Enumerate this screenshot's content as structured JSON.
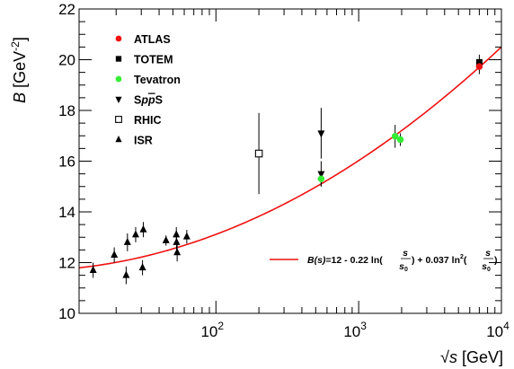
{
  "chart_data": {
    "type": "scatter",
    "xscale": "log",
    "xlim": [
      11,
      10000
    ],
    "ylim": [
      10,
      22
    ],
    "xlabel": "√s [GeV]",
    "ylabel": "B [GeV⁻²]",
    "x_ticks": [
      {
        "value": 100,
        "base": "10",
        "exp": "2"
      },
      {
        "value": 1000,
        "base": "10",
        "exp": "3"
      },
      {
        "value": 10000,
        "base": "10",
        "exp": "4"
      }
    ],
    "y_ticks": [
      10,
      12,
      14,
      16,
      18,
      20,
      22
    ],
    "grid": false,
    "legend_position": "top-left",
    "series": [
      {
        "name": "ATLAS",
        "marker": "circle-filled",
        "color": "#ee1111",
        "points": [
          {
            "x": 7000,
            "y": 19.73,
            "err": 0.3
          }
        ]
      },
      {
        "name": "TOTEM",
        "marker": "square-filled",
        "color": "#000000",
        "points": [
          {
            "x": 7000,
            "y": 19.9,
            "err": 0.3
          }
        ]
      },
      {
        "name": "Tevatron",
        "marker": "circle-filled",
        "color": "#33ee33",
        "points": [
          {
            "x": 546,
            "y": 15.3,
            "err": 0.3
          },
          {
            "x": 1800,
            "y": 16.98,
            "err": 0.45
          },
          {
            "x": 1960,
            "y": 16.85,
            "err": 0.25
          }
        ]
      },
      {
        "name": "SppS",
        "marker": "triangle-down",
        "color": "#000000",
        "points": [
          {
            "x": 546,
            "y": 17.1,
            "err": 1.0
          },
          {
            "x": 546,
            "y": 15.5,
            "err": 0.5
          }
        ]
      },
      {
        "name": "RHIC",
        "marker": "square-open",
        "color": "#000000",
        "points": [
          {
            "x": 200,
            "y": 16.3,
            "err": 1.6
          }
        ]
      },
      {
        "name": "ISR",
        "marker": "triangle-up",
        "color": "#000000",
        "points": [
          {
            "x": 13.8,
            "y": 11.7,
            "err": 0.3
          },
          {
            "x": 19.4,
            "y": 12.3,
            "err": 0.3
          },
          {
            "x": 23.5,
            "y": 11.5,
            "err": 0.35
          },
          {
            "x": 24.0,
            "y": 12.8,
            "err": 0.35
          },
          {
            "x": 27.4,
            "y": 13.1,
            "err": 0.3
          },
          {
            "x": 30.6,
            "y": 11.8,
            "err": 0.3
          },
          {
            "x": 31.0,
            "y": 13.3,
            "err": 0.3
          },
          {
            "x": 44.7,
            "y": 12.87,
            "err": 0.2
          },
          {
            "x": 52.8,
            "y": 13.1,
            "err": 0.3
          },
          {
            "x": 53.0,
            "y": 12.8,
            "err": 0.45
          },
          {
            "x": 53.5,
            "y": 12.4,
            "err": 0.35
          },
          {
            "x": 62.5,
            "y": 13.02,
            "err": 0.27
          }
        ]
      }
    ],
    "fit": {
      "formula": {
        "lhs": "B(s)",
        "eq": "=12 - 0.22 ln(",
        "mid": ") + 0.037 ln",
        "sq": "2",
        "open": "(",
        "close": ")",
        "frac_num": "s",
        "frac_den": "s",
        "frac_den_sub": "0"
      },
      "color": "#ee1111",
      "a": 12,
      "b": -0.22,
      "c": 0.037,
      "s0": 1
    }
  }
}
